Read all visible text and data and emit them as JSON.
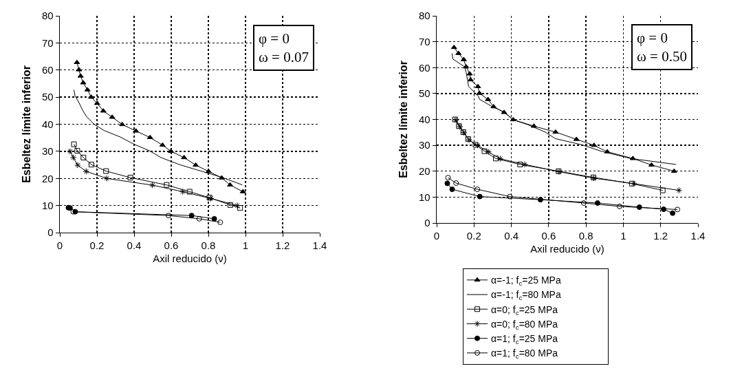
{
  "chart_data": [
    {
      "type": "line",
      "xlabel": "Axil reducido (ν)",
      "ylabel": "Esbeltez límite inferior",
      "annotations": [
        "φ = 0\nω = 0.07"
      ],
      "xlim": [
        0,
        1.4
      ],
      "xticks": [
        0,
        0.2,
        0.4,
        0.6,
        0.8,
        1,
        1.2,
        1.4
      ],
      "ylim": [
        0,
        80
      ],
      "yticks": [
        0,
        10,
        20,
        30,
        40,
        50,
        60,
        70,
        80
      ],
      "grid": true,
      "legend": false,
      "line_style": "solid",
      "series": [
        {
          "color": "#000000",
          "marker": "triangle",
          "x": [
            0.092,
            0.103,
            0.112,
            0.126,
            0.149,
            0.169,
            0.201,
            0.234,
            0.282,
            0.336,
            0.41,
            0.486,
            0.553,
            0.599,
            0.669,
            0.732,
            0.801,
            0.872,
            0.917,
            0.986
          ],
          "values": [
            62.8,
            60.1,
            57.8,
            55.3,
            52.7,
            50.0,
            47.7,
            44.9,
            42.6,
            39.9,
            37.5,
            35.1,
            32.3,
            30.0,
            27.7,
            24.9,
            22.6,
            20.2,
            17.6,
            15.1
          ]
        },
        {
          "color": "#000000",
          "marker": "none",
          "x": [
            0.076,
            0.082,
            0.103,
            0.124,
            0.145,
            0.186,
            0.238,
            0.325,
            0.4,
            0.483,
            0.545,
            0.644,
            0.756,
            0.877,
            0.983
          ],
          "values": [
            52.7,
            50.4,
            48.0,
            45.0,
            42.7,
            39.9,
            37.7,
            35.3,
            32.6,
            30.2,
            27.7,
            25.1,
            22.8,
            20.3,
            17.6
          ]
        },
        {
          "color": "#000000",
          "marker": "square-open",
          "x": [
            0.076,
            0.094,
            0.127,
            0.17,
            0.249,
            0.38,
            0.575,
            0.699,
            0.806,
            0.918,
            0.971
          ],
          "values": [
            32.6,
            30.2,
            27.7,
            25.1,
            22.7,
            20.3,
            17.6,
            15.1,
            12.9,
            10.2,
            9.1
          ]
        },
        {
          "color": "#000000",
          "marker": "cross",
          "x": [
            0.055,
            0.073,
            0.096,
            0.142,
            0.253,
            0.499,
            0.662,
            0.813,
            0.956
          ],
          "values": [
            30.0,
            27.7,
            24.9,
            22.6,
            20.0,
            17.5,
            15.1,
            12.6,
            10.0
          ]
        },
        {
          "color": "#000000",
          "marker": "circle",
          "x": [
            0.046,
            0.055,
            0.083,
            0.71,
            0.832
          ],
          "values": [
            9.2,
            9.1,
            7.7,
            6.3,
            5.1
          ]
        },
        {
          "color": "#000000",
          "marker": "circle-open",
          "x": [
            0.072,
            0.585,
            0.751,
            0.864
          ],
          "values": [
            7.7,
            6.3,
            5.1,
            3.8
          ]
        }
      ]
    },
    {
      "type": "line",
      "xlabel": "Axil reducido (ν)",
      "ylabel": "Esbeltez límite inferior",
      "annotations": [
        "φ = 0\nω = 0.50"
      ],
      "xlim": [
        0,
        1.4
      ],
      "xticks": [
        0,
        0.2,
        0.4,
        0.6,
        0.8,
        1,
        1.2,
        1.4
      ],
      "ylim": [
        0,
        80
      ],
      "yticks": [
        0,
        10,
        20,
        30,
        40,
        50,
        60,
        70,
        80
      ],
      "grid": true,
      "legend": "bottom",
      "line_style": "solid",
      "series": [
        {
          "name": "α=-1; f$_{c}$=25 MPa",
          "color": "#000000",
          "marker": "triangle",
          "x": [
            0.093,
            0.117,
            0.145,
            0.158,
            0.177,
            0.182,
            0.221,
            0.229,
            0.275,
            0.305,
            0.361,
            0.41,
            0.521,
            0.637,
            0.749,
            0.843,
            0.914,
            1.051,
            1.151,
            1.272
          ],
          "values": [
            67.8,
            65.5,
            63.1,
            60.3,
            57.6,
            55.3,
            52.7,
            50.1,
            47.7,
            44.9,
            42.7,
            39.9,
            37.4,
            35.1,
            32.3,
            30.0,
            27.5,
            24.9,
            22.4,
            20.0
          ]
        },
        {
          "name": "α=-1; f$_{c}$=80 MPa",
          "color": "#000000",
          "marker": "none",
          "x": [
            0.082,
            0.087,
            0.15,
            0.158,
            0.166,
            0.171,
            0.224,
            0.229,
            0.293,
            0.366,
            0.408,
            0.487,
            0.582,
            0.635,
            0.777,
            0.882,
            1.04,
            1.282
          ],
          "values": [
            65.5,
            63.3,
            60.3,
            58.1,
            55.0,
            52.7,
            48.9,
            47.8,
            45.1,
            42.7,
            39.9,
            38.0,
            35.1,
            32.6,
            30.2,
            27.7,
            24.9,
            22.6
          ]
        },
        {
          "name": "α=0; f$_{c}$=25 MPa",
          "color": "#000000",
          "marker": "square-open",
          "x": [
            0.098,
            0.119,
            0.143,
            0.169,
            0.208,
            0.256,
            0.317,
            0.447,
            0.653,
            0.84,
            1.046,
            1.211
          ],
          "values": [
            40.0,
            37.4,
            35.1,
            32.4,
            30.2,
            27.7,
            24.9,
            22.6,
            20.0,
            17.6,
            15.2,
            12.6
          ]
        },
        {
          "name": "α=0; f$_{c}$=80 MPa",
          "color": "#000000",
          "marker": "cross",
          "x": [
            0.103,
            0.124,
            0.145,
            0.173,
            0.219,
            0.277,
            0.34,
            0.472,
            0.656,
            0.842,
            1.056,
            1.298
          ],
          "values": [
            39.8,
            37.2,
            34.9,
            32.1,
            30.0,
            27.5,
            24.8,
            22.6,
            19.8,
            17.3,
            15.2,
            12.6
          ]
        },
        {
          "name": "α=1; f$_{c}$=25 MPa",
          "color": "#000000",
          "marker": "circle",
          "x": [
            0.057,
            0.083,
            0.231,
            0.556,
            0.862,
            1.086,
            1.216,
            1.264
          ],
          "values": [
            15.3,
            13.0,
            10.2,
            9.0,
            7.7,
            6.1,
            5.3,
            3.8
          ]
        },
        {
          "name": "α=1; f$_{c}$=80 MPa",
          "color": "#000000",
          "marker": "circle-open",
          "x": [
            0.061,
            0.104,
            0.218,
            0.392,
            0.788,
            0.98,
            1.29
          ],
          "values": [
            17.5,
            15.4,
            13.0,
            10.2,
            7.7,
            6.4,
            5.2
          ]
        }
      ]
    }
  ]
}
